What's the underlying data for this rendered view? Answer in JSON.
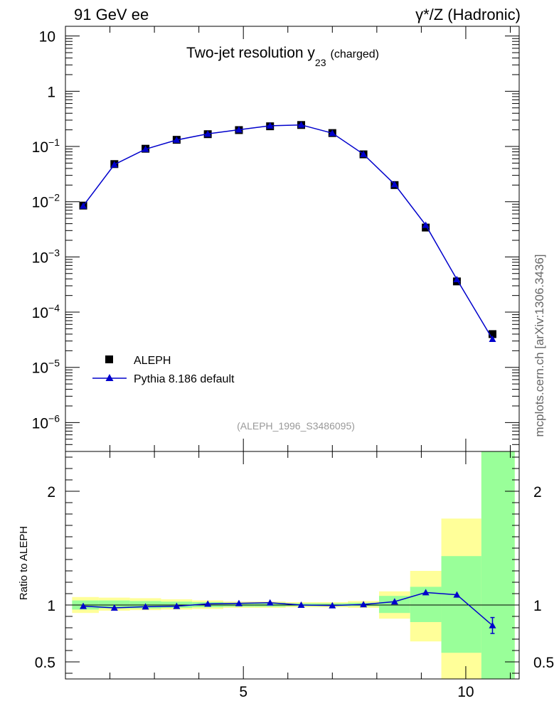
{
  "header": {
    "left": "91 GeV ee",
    "right": "γ*/Z (Hadronic)"
  },
  "side_label": "mcplots.cern.ch [arXiv:1306.3436]",
  "chart_data": [
    {
      "type": "scatter",
      "title": "Two-jet resolution y",
      "title_sub": "23",
      "title_suffix": "(charged)",
      "xlabel": "",
      "ylabel": "",
      "xlim": [
        1.0,
        11.2
      ],
      "ylim": [
        3e-07,
        15
      ],
      "yscale": "log",
      "yticks": [
        {
          "v": 10,
          "label": "10"
        },
        {
          "v": 1,
          "label": "1"
        },
        {
          "v": 0.1,
          "label": "10",
          "exp": "−1"
        },
        {
          "v": 0.01,
          "label": "10",
          "exp": "−2"
        },
        {
          "v": 0.001,
          "label": "10",
          "exp": "−3"
        },
        {
          "v": 0.0001,
          "label": "10",
          "exp": "−4"
        },
        {
          "v": 1e-05,
          "label": "10",
          "exp": "−5"
        },
        {
          "v": 1e-06,
          "label": "10",
          "exp": "−6"
        }
      ],
      "watermark": "(ALEPH_1996_S3486095)",
      "legend": {
        "position": "bottom-left",
        "entries": [
          {
            "label": "ALEPH",
            "marker": "square",
            "color": "#000000"
          },
          {
            "label": "Pythia 8.186 default",
            "marker": "triangle",
            "color": "#0000cc"
          }
        ]
      },
      "series": [
        {
          "name": "ALEPH",
          "x": [
            1.4,
            2.1,
            2.8,
            3.5,
            4.2,
            4.9,
            5.6,
            6.3,
            7.0,
            7.7,
            8.4,
            9.1,
            9.8,
            10.6
          ],
          "y": [
            0.0085,
            0.048,
            0.091,
            0.132,
            0.167,
            0.198,
            0.232,
            0.245,
            0.175,
            0.072,
            0.02,
            0.0034,
            0.00036,
            4e-05
          ]
        },
        {
          "name": "Pythia 8.186 default",
          "x": [
            1.4,
            2.1,
            2.8,
            3.5,
            4.2,
            4.9,
            5.6,
            6.3,
            7.0,
            7.7,
            8.4,
            9.1,
            9.8,
            10.6
          ],
          "y": [
            0.0084,
            0.047,
            0.0895,
            0.131,
            0.169,
            0.201,
            0.237,
            0.246,
            0.174,
            0.0725,
            0.0206,
            0.00377,
            0.000392,
            3.25e-05
          ]
        }
      ]
    },
    {
      "type": "line",
      "ylabel": "Ratio to ALEPH",
      "xlim": [
        1.0,
        11.2
      ],
      "ylim": [
        0.35,
        2.35
      ],
      "yticks": [
        {
          "v": 2,
          "label": "2"
        },
        {
          "v": 1,
          "label": "1"
        },
        {
          "v": 0.5,
          "label": "0.5"
        }
      ],
      "xticks": [
        {
          "v": 5,
          "label": "5"
        },
        {
          "v": 10,
          "label": "10"
        }
      ],
      "bins": {
        "edges": [
          1.15,
          1.75,
          2.45,
          3.15,
          3.85,
          4.55,
          5.25,
          5.95,
          6.65,
          7.35,
          8.05,
          8.75,
          9.45,
          10.35,
          11.1
        ],
        "green_lo": [
          0.96,
          0.97,
          0.97,
          0.975,
          0.98,
          0.985,
          0.985,
          0.99,
          0.99,
          0.99,
          0.93,
          0.85,
          0.58,
          0.35
        ],
        "green_hi": [
          1.04,
          1.04,
          1.035,
          1.03,
          1.025,
          1.02,
          1.02,
          1.015,
          1.015,
          1.02,
          1.08,
          1.16,
          1.43,
          2.35
        ],
        "yellow_lo": [
          0.93,
          0.95,
          0.955,
          0.96,
          0.965,
          0.975,
          0.975,
          0.98,
          0.98,
          0.975,
          0.88,
          0.68,
          0.35,
          0.35
        ],
        "yellow_hi": [
          1.07,
          1.065,
          1.06,
          1.05,
          1.04,
          1.03,
          1.03,
          1.025,
          1.025,
          1.035,
          1.12,
          1.3,
          1.76,
          2.35
        ]
      },
      "colors": {
        "green": "#99ff99",
        "yellow": "#ffff99",
        "line": "#0000cc"
      },
      "series": [
        {
          "name": "Pythia 8.186 default",
          "x": [
            1.4,
            2.1,
            2.8,
            3.5,
            4.2,
            4.9,
            5.6,
            6.3,
            7.0,
            7.7,
            8.4,
            9.1,
            9.8,
            10.6
          ],
          "y": [
            0.99,
            0.975,
            0.985,
            0.99,
            1.01,
            1.015,
            1.02,
            1.0,
            0.995,
            1.005,
            1.03,
            1.11,
            1.09,
            0.82
          ],
          "yerr": [
            0,
            0,
            0,
            0,
            0,
            0,
            0,
            0,
            0,
            0,
            0,
            0,
            0,
            0.07
          ]
        }
      ]
    }
  ]
}
